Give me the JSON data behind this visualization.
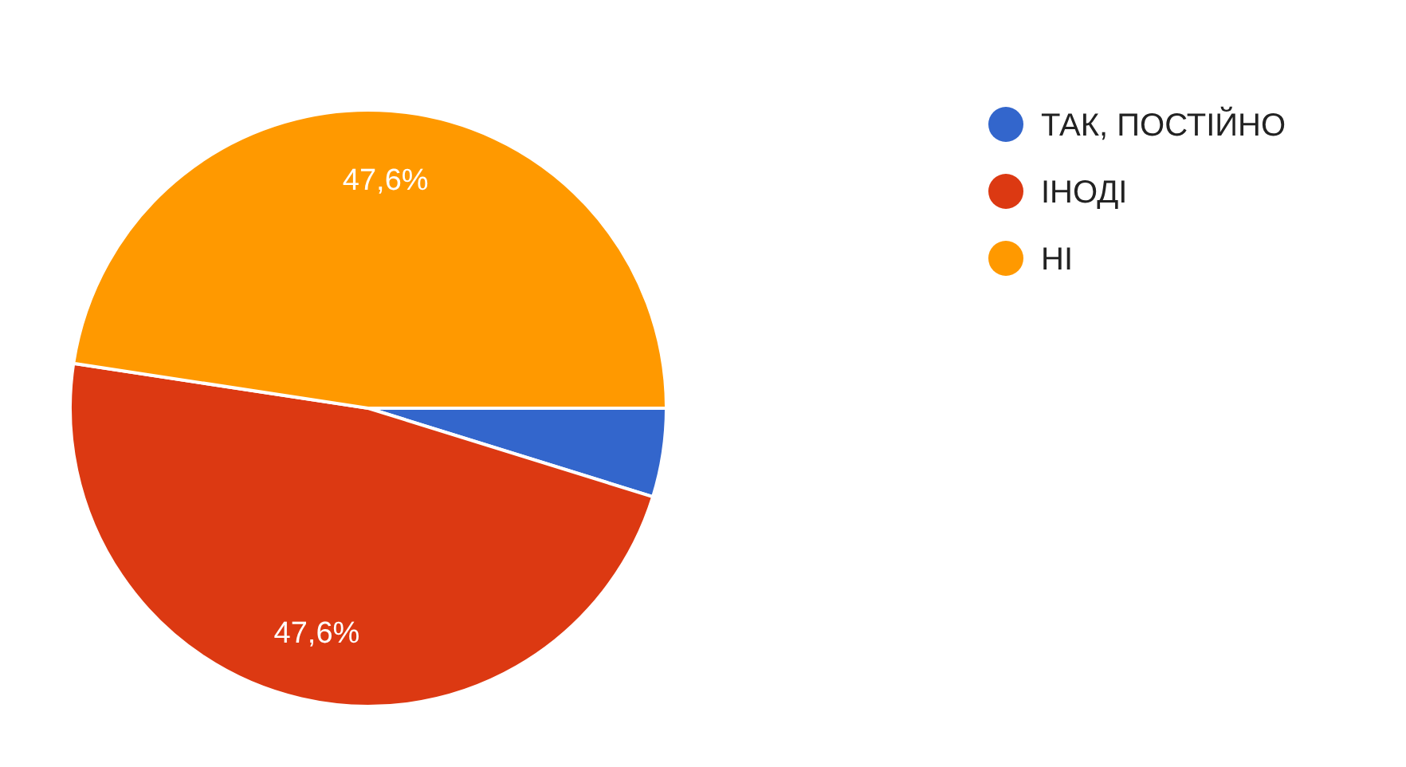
{
  "chart_data": {
    "type": "pie",
    "categories": [
      "ТАК, ПОСТІЙНО",
      "ІНОДІ",
      "НІ"
    ],
    "values": [
      4.8,
      47.6,
      47.6
    ],
    "colors": [
      "#3366cc",
      "#dc3912",
      "#ff9900"
    ],
    "value_labels": [
      null,
      "47,6%",
      "47,6%"
    ],
    "legend": "top right"
  }
}
